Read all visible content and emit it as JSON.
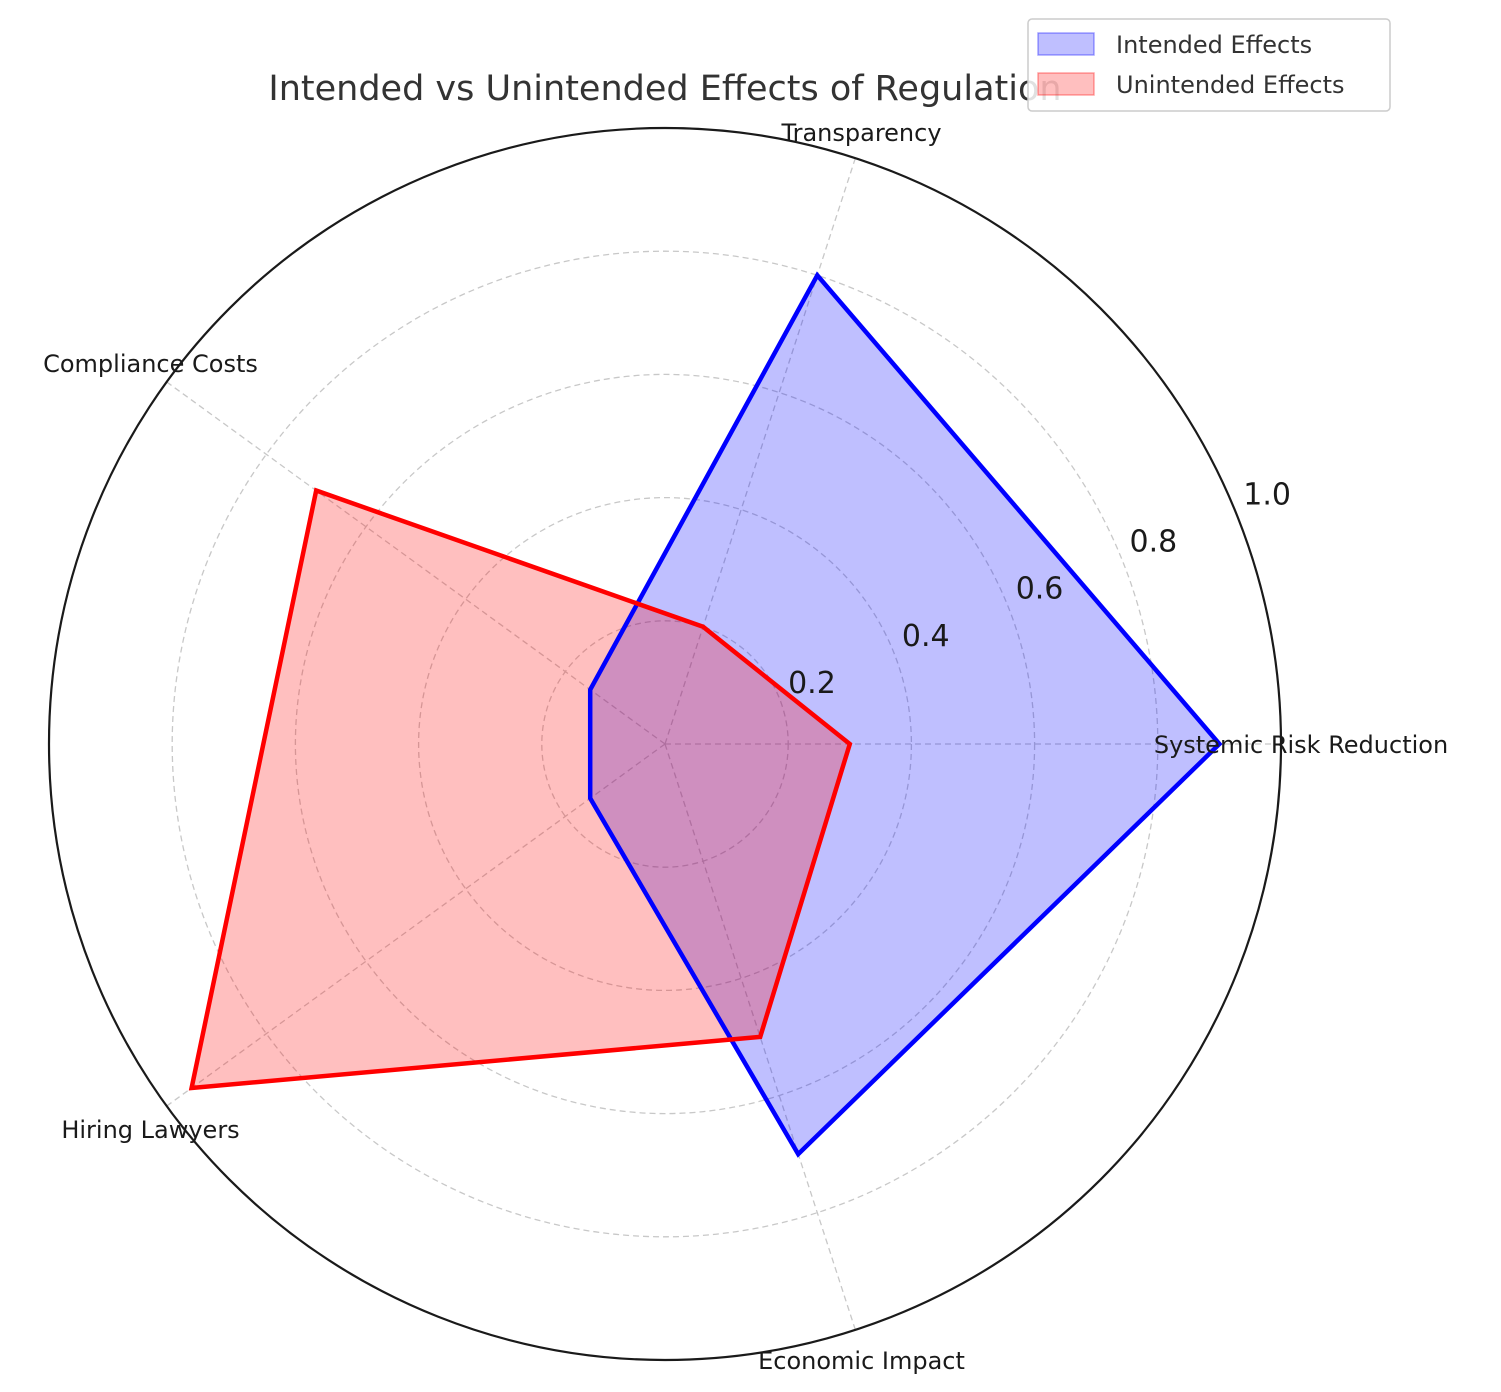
{
  "chart_data": {
    "type": "radar",
    "title": "Intended vs Unintended Effects of Regulation",
    "categories": [
      "Systemic Risk Reduction",
      "Transparency",
      "Compliance Costs",
      "Hiring Lawyers",
      "Economic Impact"
    ],
    "series": [
      {
        "name": "Intended Effects",
        "values": [
          0.9,
          0.8,
          0.15,
          0.15,
          0.7
        ],
        "color": "#0000ff",
        "fill": "#0000ff"
      },
      {
        "name": "Unintended Effects",
        "values": [
          0.3,
          0.2,
          0.7,
          0.95,
          0.5
        ],
        "color": "#ff0000",
        "fill": "#ff0000"
      }
    ],
    "rlim": [
      0,
      1.0
    ],
    "rticks": [
      "0.2",
      "0.4",
      "0.6",
      "0.8",
      "1.0"
    ],
    "grid": true,
    "legend": "top-right"
  }
}
